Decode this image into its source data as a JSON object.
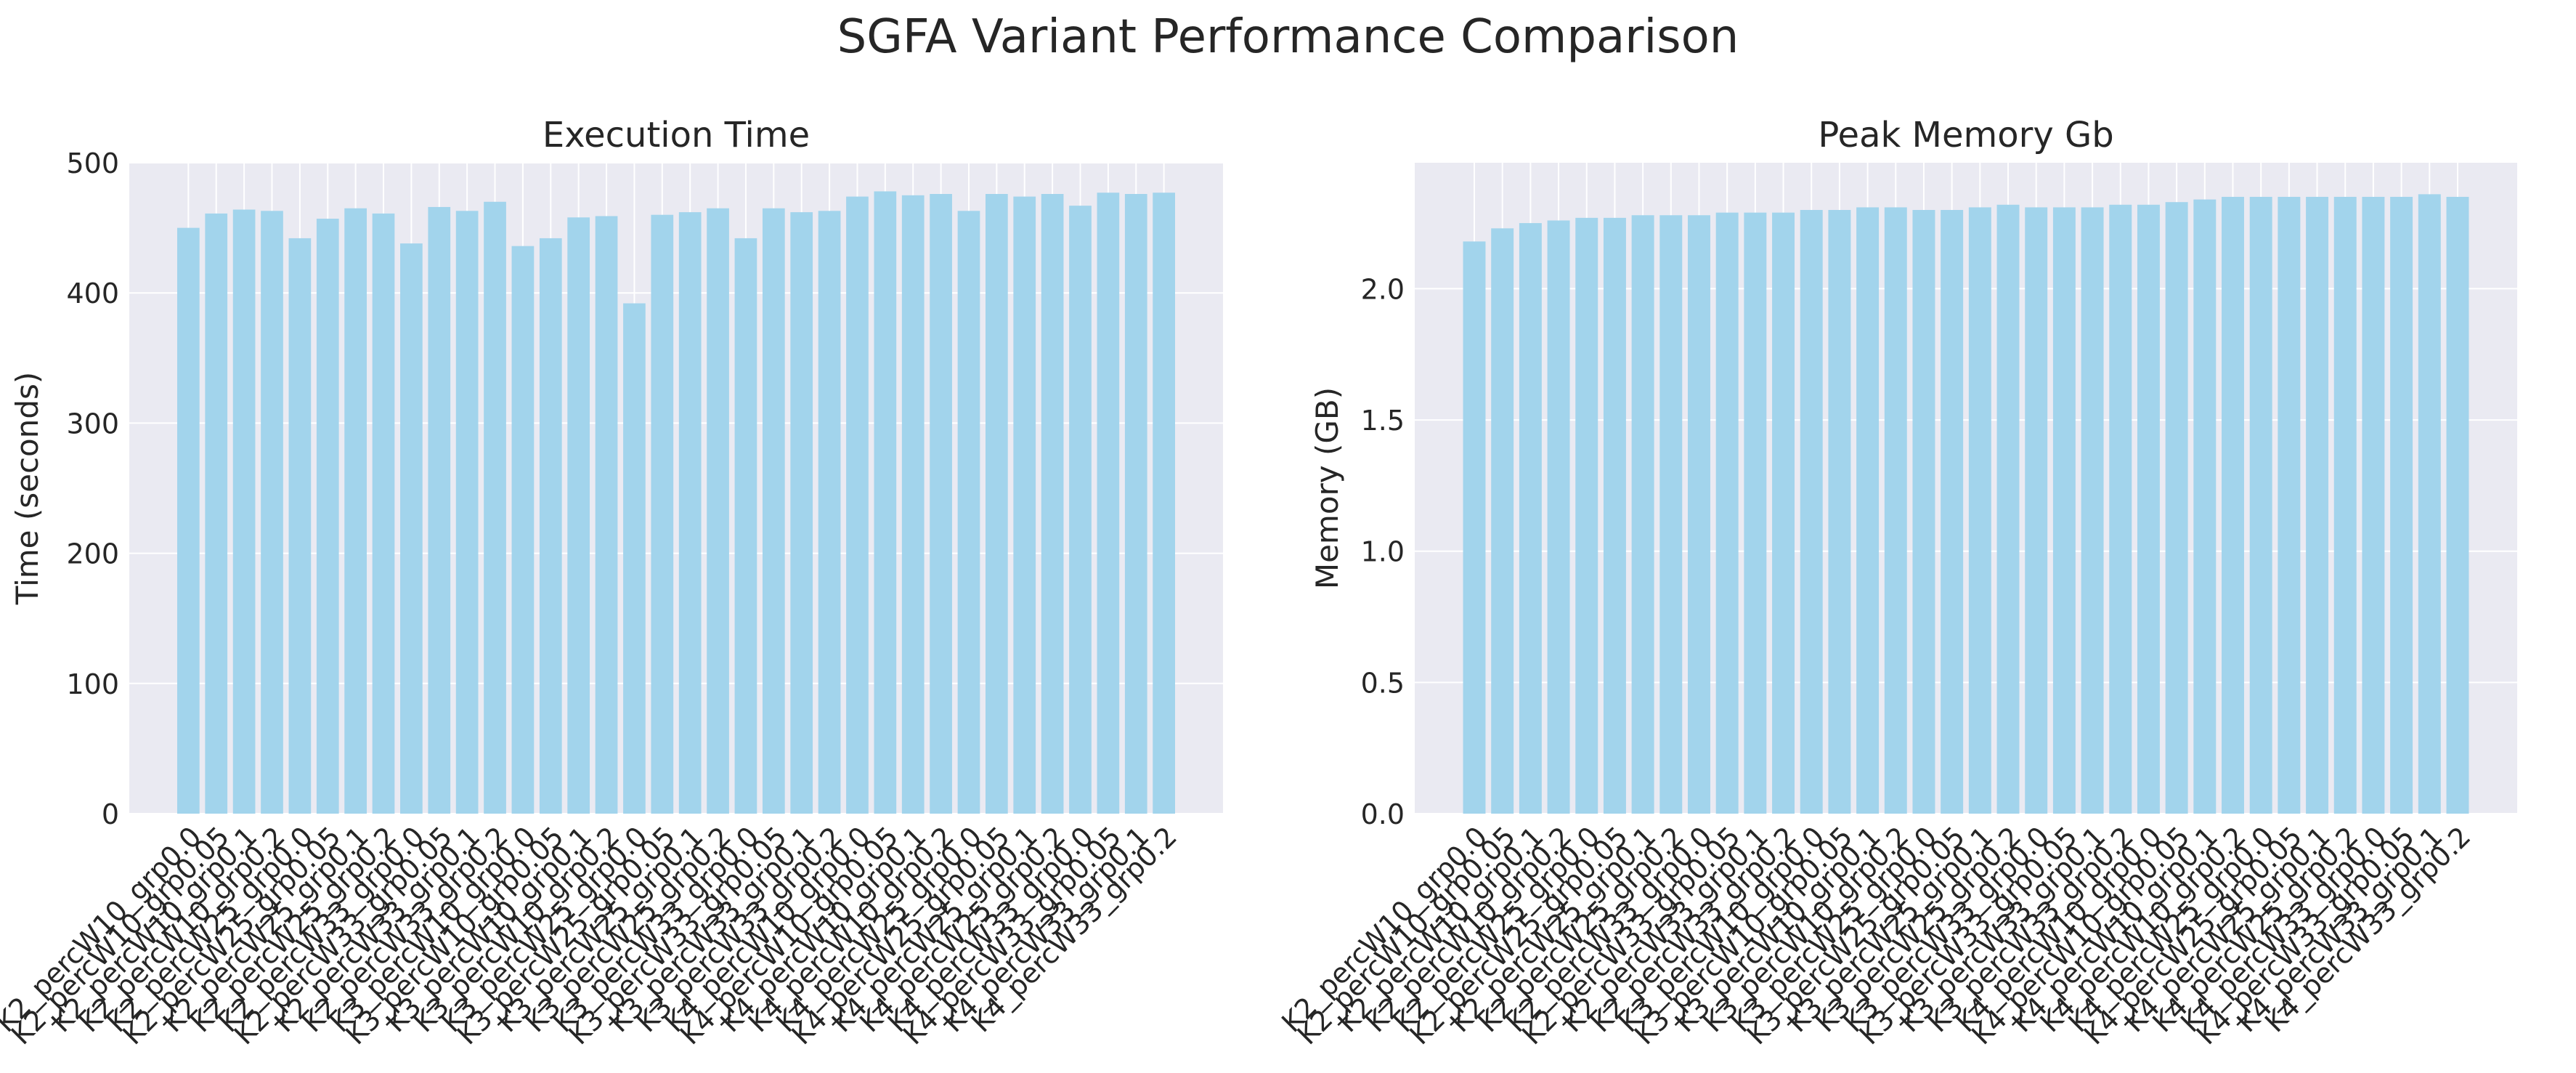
{
  "suptitle": "SGFA Variant Performance Comparison",
  "colors": {
    "bar": "#a2d4ec",
    "plot_bg": "#eaeaf2",
    "grid": "#ffffff",
    "text": "#262626"
  },
  "chart_data": [
    {
      "type": "bar",
      "title": "Execution Time",
      "xlabel": "",
      "ylabel": "Time (seconds)",
      "ylim": [
        0,
        500
      ],
      "yticks": [
        0,
        100,
        200,
        300,
        400,
        500
      ],
      "ytick_labels": [
        "0",
        "100",
        "200",
        "300",
        "400",
        "500"
      ],
      "grid": true,
      "categories": [
        "K2_percW10_grp0.0",
        "K2_percW10_grp0.05",
        "K2_percW10_grp0.1",
        "K2_percW10_grp0.2",
        "K2_percW25_grp0.0",
        "K2_percW25_grp0.05",
        "K2_percW25_grp0.1",
        "K2_percW25_grp0.2",
        "K2_percW33_grp0.0",
        "K2_percW33_grp0.05",
        "K2_percW33_grp0.1",
        "K2_percW33_grp0.2",
        "K3_percW10_grp0.0",
        "K3_percW10_grp0.05",
        "K3_percW10_grp0.1",
        "K3_percW10_grp0.2",
        "K3_percW25_grp0.0",
        "K3_percW25_grp0.05",
        "K3_percW25_grp0.1",
        "K3_percW25_grp0.2",
        "K3_percW33_grp0.0",
        "K3_percW33_grp0.05",
        "K3_percW33_grp0.1",
        "K3_percW33_grp0.2",
        "K4_percW10_grp0.0",
        "K4_percW10_grp0.05",
        "K4_percW10_grp0.1",
        "K4_percW10_grp0.2",
        "K4_percW25_grp0.0",
        "K4_percW25_grp0.05",
        "K4_percW25_grp0.1",
        "K4_percW25_grp0.2",
        "K4_percW33_grp0.0",
        "K4_percW33_grp0.05",
        "K4_percW33_grp0.1",
        "K4_percW33_grp0.2"
      ],
      "values": [
        450,
        461,
        464,
        463,
        442,
        457,
        465,
        461,
        438,
        466,
        463,
        470,
        436,
        442,
        458,
        459,
        392,
        460,
        462,
        465,
        442,
        465,
        462,
        463,
        474,
        478,
        475,
        476,
        463,
        476,
        474,
        476,
        467,
        477,
        476,
        477
      ]
    },
    {
      "type": "bar",
      "title": "Peak Memory Gb",
      "xlabel": "",
      "ylabel": "Memory (GB)",
      "ylim": [
        0,
        2.48
      ],
      "yticks": [
        0,
        0.5,
        1.0,
        1.5,
        2.0
      ],
      "ytick_labels": [
        "0.0",
        "0.5",
        "1.0",
        "1.5",
        "2.0"
      ],
      "grid": true,
      "categories": [
        "K2_percW10_grp0.0",
        "K2_percW10_grp0.05",
        "K2_percW10_grp0.1",
        "K2_percW10_grp0.2",
        "K2_percW25_grp0.0",
        "K2_percW25_grp0.05",
        "K2_percW25_grp0.1",
        "K2_percW25_grp0.2",
        "K2_percW33_grp0.0",
        "K2_percW33_grp0.05",
        "K2_percW33_grp0.1",
        "K2_percW33_grp0.2",
        "K3_percW10_grp0.0",
        "K3_percW10_grp0.05",
        "K3_percW10_grp0.1",
        "K3_percW10_grp0.2",
        "K3_percW25_grp0.0",
        "K3_percW25_grp0.05",
        "K3_percW25_grp0.1",
        "K3_percW25_grp0.2",
        "K3_percW33_grp0.0",
        "K3_percW33_grp0.05",
        "K3_percW33_grp0.1",
        "K3_percW33_grp0.2",
        "K4_percW10_grp0.0",
        "K4_percW10_grp0.05",
        "K4_percW10_grp0.1",
        "K4_percW10_grp0.2",
        "K4_percW25_grp0.0",
        "K4_percW25_grp0.05",
        "K4_percW25_grp0.1",
        "K4_percW25_grp0.2",
        "K4_percW33_grp0.0",
        "K4_percW33_grp0.05",
        "K4_percW33_grp0.1",
        "K4_percW33_grp0.2"
      ],
      "values": [
        2.18,
        2.23,
        2.25,
        2.26,
        2.27,
        2.27,
        2.28,
        2.28,
        2.28,
        2.29,
        2.29,
        2.29,
        2.3,
        2.3,
        2.31,
        2.31,
        2.3,
        2.3,
        2.31,
        2.32,
        2.31,
        2.31,
        2.31,
        2.32,
        2.32,
        2.33,
        2.34,
        2.35,
        2.35,
        2.35,
        2.35,
        2.35,
        2.35,
        2.35,
        2.36,
        2.35
      ]
    }
  ]
}
